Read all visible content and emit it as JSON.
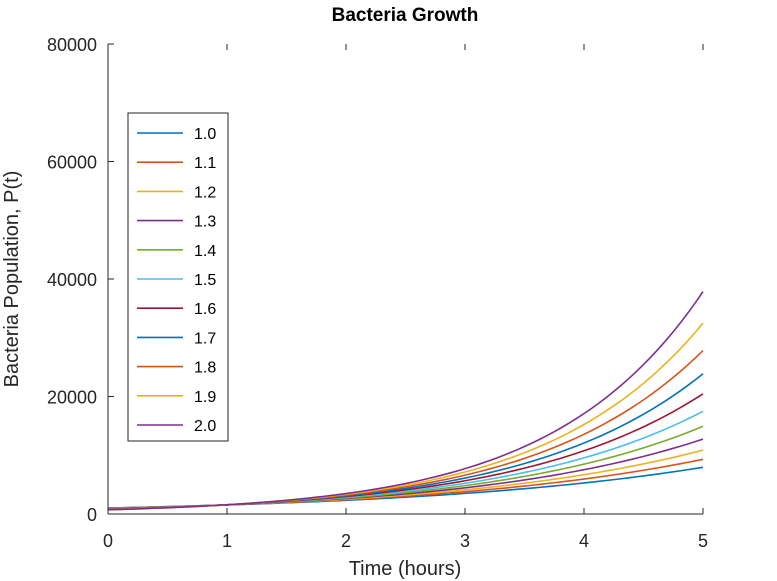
{
  "chart_data": {
    "type": "line",
    "title": "Bacteria Growth",
    "xlabel": "Time (hours)",
    "ylabel": "Bacteria Population, P(t)",
    "xlim": [
      0,
      5
    ],
    "ylim": [
      0,
      80000
    ],
    "xticks": [
      0,
      1,
      2,
      3,
      4,
      5
    ],
    "yticks": [
      0,
      20000,
      40000,
      60000,
      80000
    ],
    "grid": false,
    "legend_position": "upper-left",
    "x": [
      0,
      0.5,
      1,
      1.5,
      2,
      2.5,
      3,
      3.5,
      4,
      4.5,
      5
    ],
    "series": [
      {
        "name": "1.0",
        "color": "#0072bd",
        "values": [
          1029,
          1262,
          1549,
          1900,
          2331,
          2860,
          3509,
          4305,
          5282,
          6481,
          7952
        ]
      },
      {
        "name": "1.1",
        "color": "#d95319",
        "values": [
          992,
          1241,
          1552,
          1942,
          2429,
          3039,
          3802,
          4757,
          5951,
          7445,
          9314
        ]
      },
      {
        "name": "1.2",
        "color": "#edb120",
        "values": [
          956,
          1219,
          1555,
          1983,
          2528,
          3224,
          4112,
          5244,
          6688,
          8530,
          10878
        ]
      },
      {
        "name": "1.3",
        "color": "#7e2f8e",
        "values": [
          921,
          1198,
          1558,
          2026,
          2635,
          3427,
          4457,
          5797,
          7539,
          9805,
          12751
        ]
      },
      {
        "name": "1.4",
        "color": "#77ac30",
        "values": [
          888,
          1177,
          1561,
          2070,
          2745,
          3640,
          4827,
          6401,
          8488,
          11256,
          14927
        ]
      },
      {
        "name": "1.5",
        "color": "#4dbeee",
        "values": [
          855,
          1156,
          1564,
          2115,
          2859,
          3866,
          5228,
          7069,
          9558,
          12925,
          17477
        ]
      },
      {
        "name": "1.6",
        "color": "#a2142f",
        "values": [
          825,
          1136,
          1567,
          2160,
          2978,
          4106,
          5661,
          7804,
          10760,
          14834,
          20450
        ]
      },
      {
        "name": "1.7",
        "color": "#0072bd",
        "values": [
          794,
          1115,
          1568,
          2203,
          3096,
          4352,
          6117,
          8597,
          12083,
          16982,
          23868
        ]
      },
      {
        "name": "1.8",
        "color": "#d95319",
        "values": [
          766,
          1096,
          1571,
          2251,
          3223,
          4616,
          6612,
          9471,
          13564,
          19428,
          27826
        ]
      },
      {
        "name": "1.9",
        "color": "#edb120",
        "values": [
          738,
          1076,
          1572,
          2296,
          3353,
          4895,
          7147,
          10435,
          15236,
          22245,
          32480
        ]
      },
      {
        "name": "2.0",
        "color": "#7e2f8e",
        "values": [
          711,
          1057,
          1573,
          2341,
          3484,
          5185,
          7716,
          11483,
          17090,
          25434,
          37851
        ]
      }
    ]
  }
}
